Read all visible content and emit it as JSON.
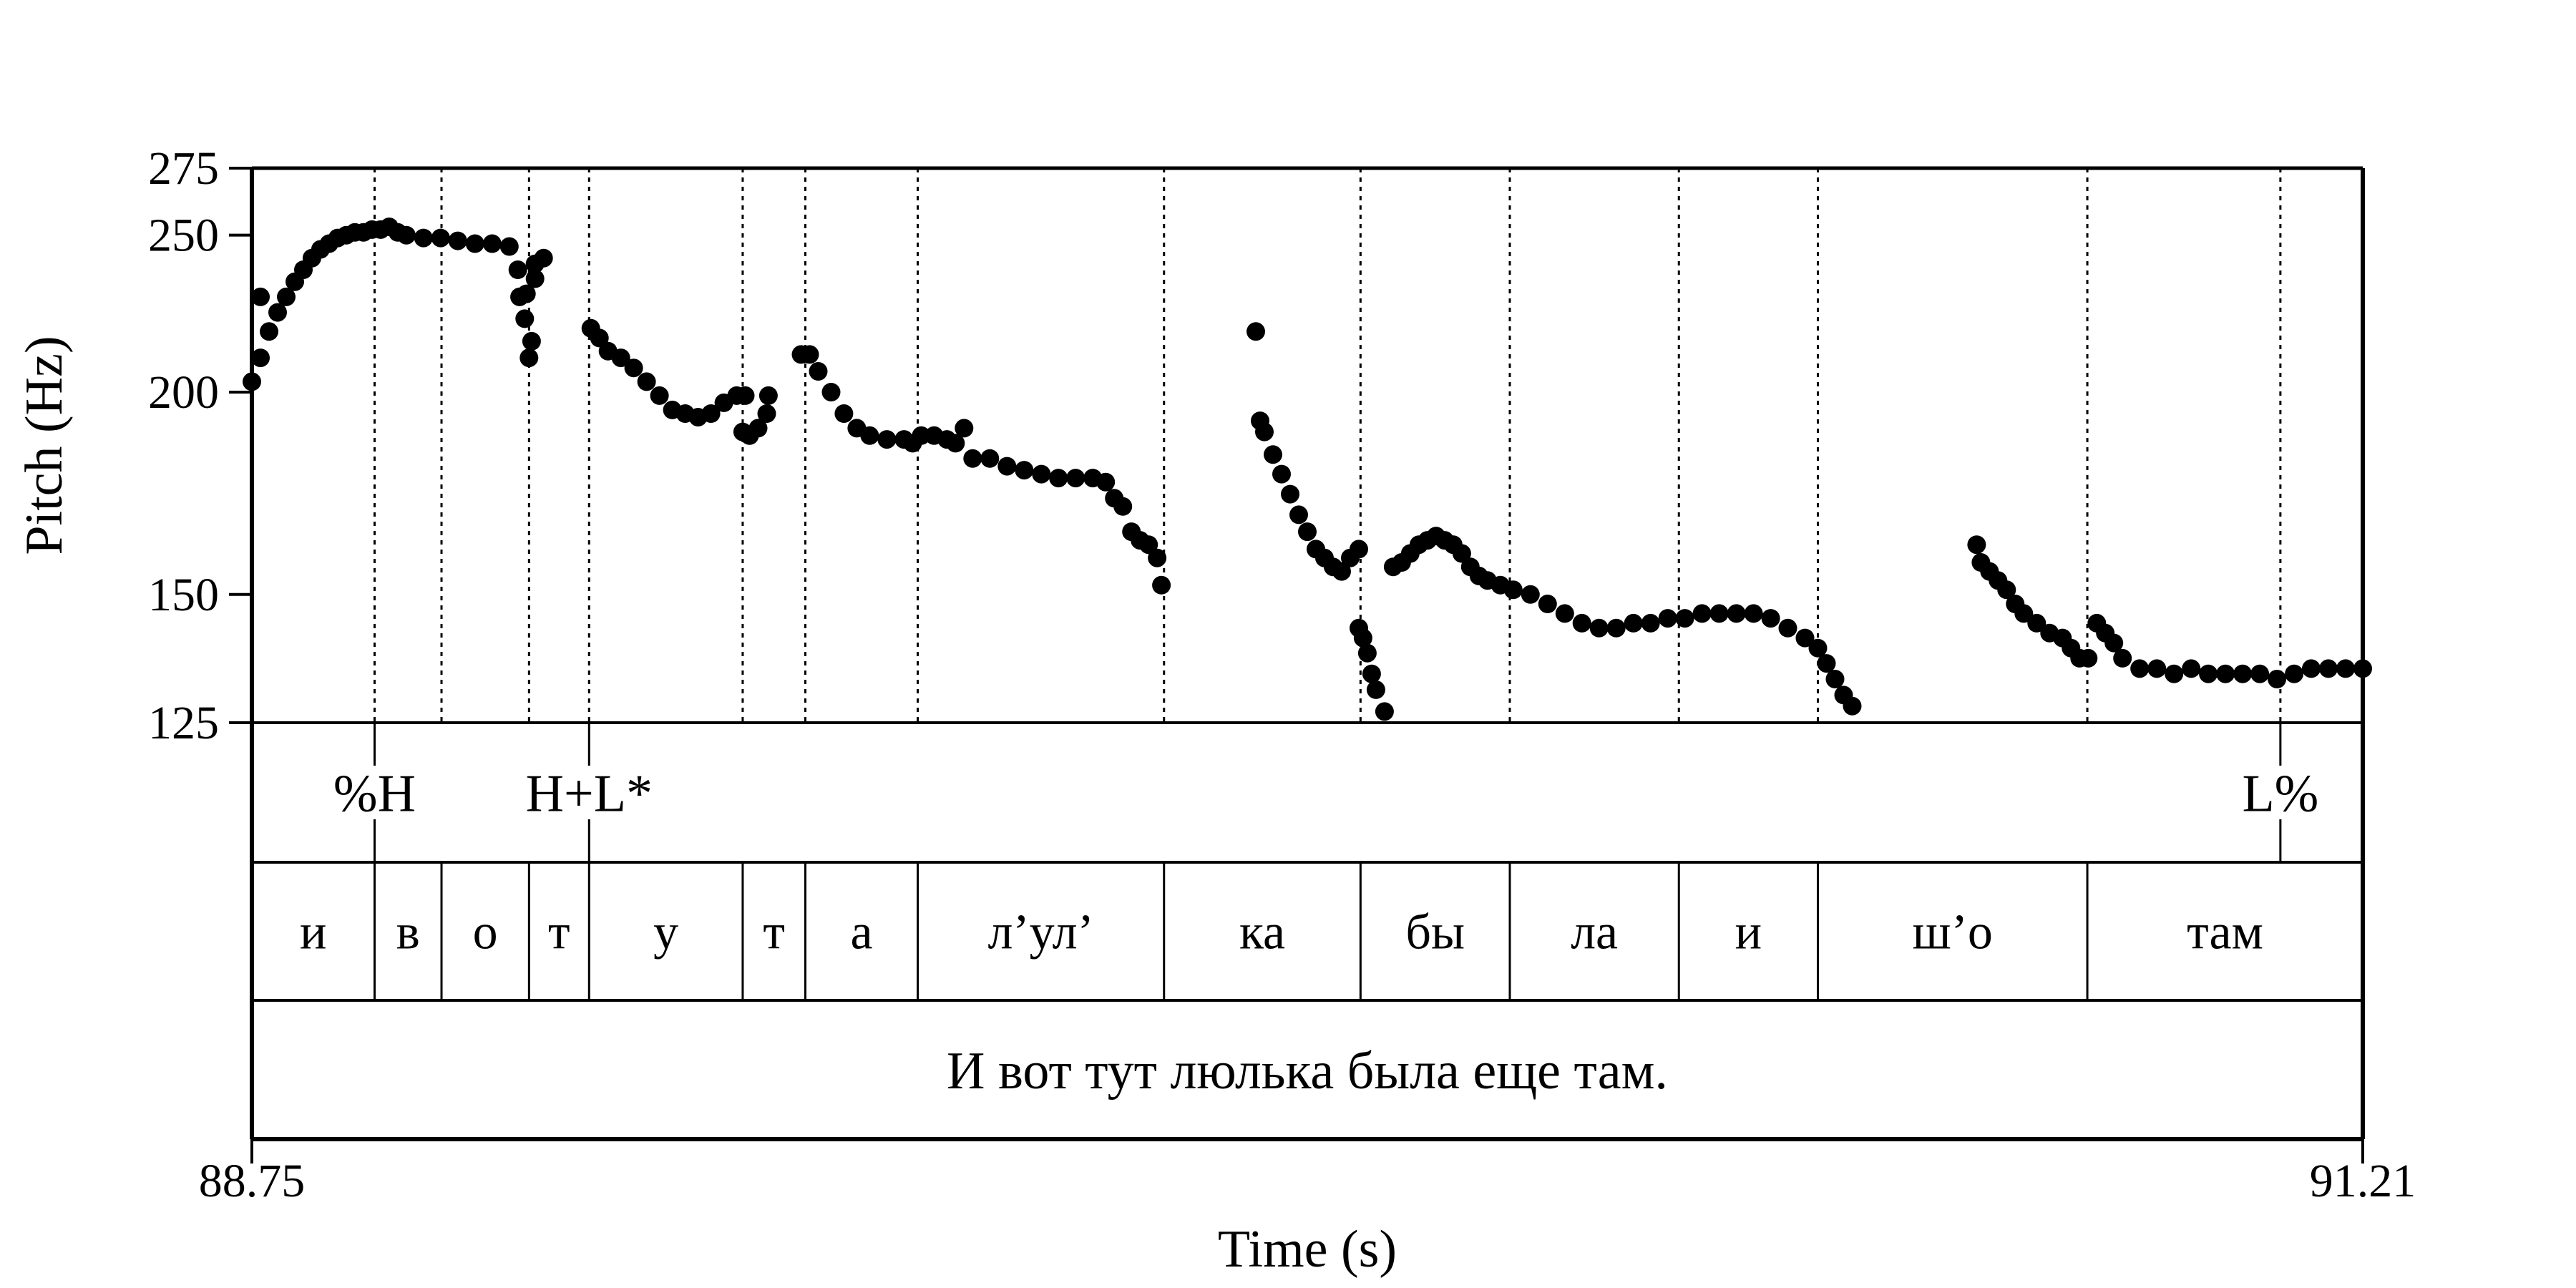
{
  "chart_data": {
    "type": "scatter",
    "xlabel": "Time (s)",
    "ylabel": "Pitch (Hz)",
    "xlim": [
      88.75,
      91.21
    ],
    "ylim": [
      125,
      275
    ],
    "y_scale": "log",
    "y_ticks": [
      125,
      150,
      200,
      250,
      275
    ],
    "x_tick_labels": [
      "88.75",
      "91.21"
    ],
    "grid": "dotted vertical lines at segment and tone boundaries",
    "boundaries": [
      88.893,
      88.971,
      89.073,
      89.143,
      89.322,
      89.395,
      89.526,
      89.813,
      90.042,
      90.216,
      90.413,
      90.575,
      90.889,
      91.114
    ],
    "tones": [
      {
        "label": "%H",
        "t": 88.893
      },
      {
        "label": "H+L*",
        "t": 89.143
      },
      {
        "label": "L%",
        "t": 91.114
      }
    ],
    "segments": [
      {
        "label": "и",
        "start": 88.75,
        "end": 88.893
      },
      {
        "label": "в",
        "start": 88.893,
        "end": 88.971
      },
      {
        "label": "о",
        "start": 88.971,
        "end": 89.073
      },
      {
        "label": "т",
        "start": 89.073,
        "end": 89.143
      },
      {
        "label": "у",
        "start": 89.143,
        "end": 89.322
      },
      {
        "label": "т",
        "start": 89.322,
        "end": 89.395
      },
      {
        "label": "а",
        "start": 89.395,
        "end": 89.526
      },
      {
        "label": "л’ул’",
        "start": 89.526,
        "end": 89.813
      },
      {
        "label": "ка",
        "start": 89.813,
        "end": 90.042
      },
      {
        "label": "бы",
        "start": 90.042,
        "end": 90.216
      },
      {
        "label": "ла",
        "start": 90.216,
        "end": 90.413
      },
      {
        "label": "и",
        "start": 90.413,
        "end": 90.575
      },
      {
        "label": "ш’о",
        "start": 90.575,
        "end": 90.889
      },
      {
        "label": "там",
        "start": 90.889,
        "end": 91.21
      }
    ],
    "utterance": "И вот тут люлька была еще там.",
    "series": [
      {
        "points": [
          [
            88.75,
            203
          ],
          [
            88.76,
            210
          ],
          [
            88.77,
            218
          ],
          [
            88.78,
            224
          ],
          [
            88.79,
            229
          ],
          [
            88.8,
            234
          ],
          [
            88.81,
            238
          ],
          [
            88.82,
            242
          ],
          [
            88.83,
            245
          ],
          [
            88.84,
            247
          ],
          [
            88.85,
            249
          ],
          [
            88.86,
            250
          ],
          [
            88.87,
            251
          ],
          [
            88.88,
            251
          ],
          [
            88.89,
            252
          ],
          [
            88.9,
            252
          ],
          [
            88.91,
            253
          ],
          [
            88.92,
            251
          ],
          [
            88.93,
            250
          ],
          [
            88.95,
            249
          ],
          [
            88.97,
            249
          ],
          [
            88.99,
            248
          ],
          [
            89.01,
            247
          ],
          [
            89.03,
            247
          ],
          [
            89.05,
            246
          ],
          [
            89.06,
            238
          ],
          [
            89.07,
            230
          ],
          [
            89.08,
            240
          ],
          [
            89.09,
            242
          ]
        ]
      },
      {
        "points": [
          [
            88.76,
            229
          ],
          [
            89.062,
            229
          ],
          [
            89.068,
            222
          ],
          [
            89.073,
            210
          ],
          [
            89.076,
            215
          ],
          [
            89.08,
            235
          ]
        ]
      },
      {
        "points": [
          [
            89.145,
            219
          ],
          [
            89.155,
            216
          ],
          [
            89.165,
            212
          ],
          [
            89.18,
            210
          ],
          [
            89.195,
            207
          ],
          [
            89.21,
            203
          ],
          [
            89.225,
            199
          ],
          [
            89.24,
            195
          ],
          [
            89.255,
            194
          ],
          [
            89.27,
            193
          ],
          [
            89.285,
            194
          ],
          [
            89.3,
            197
          ],
          [
            89.315,
            199
          ],
          [
            89.325,
            199
          ]
        ]
      },
      {
        "points": [
          [
            89.322,
            189
          ],
          [
            89.33,
            188
          ],
          [
            89.34,
            190
          ],
          [
            89.35,
            194
          ],
          [
            89.352,
            199
          ]
        ]
      },
      {
        "points": [
          [
            89.39,
            211
          ],
          [
            89.4,
            211
          ],
          [
            89.41,
            206
          ],
          [
            89.425,
            200
          ],
          [
            89.44,
            194
          ],
          [
            89.455,
            190
          ],
          [
            89.47,
            188
          ],
          [
            89.49,
            187
          ],
          [
            89.51,
            187
          ],
          [
            89.52,
            186
          ],
          [
            89.53,
            188
          ],
          [
            89.545,
            188
          ],
          [
            89.56,
            187
          ],
          [
            89.57,
            186
          ],
          [
            89.58,
            190
          ],
          [
            89.59,
            182
          ],
          [
            89.61,
            182
          ],
          [
            89.63,
            180
          ],
          [
            89.65,
            179
          ],
          [
            89.67,
            178
          ],
          [
            89.69,
            177
          ],
          [
            89.71,
            177
          ],
          [
            89.73,
            177
          ],
          [
            89.745,
            176
          ],
          [
            89.755,
            172
          ],
          [
            89.765,
            170
          ],
          [
            89.775,
            164
          ],
          [
            89.785,
            162
          ],
          [
            89.795,
            161
          ],
          [
            89.805,
            158
          ],
          [
            89.81,
            152
          ]
        ]
      },
      {
        "points": [
          [
            89.92,
            218
          ],
          [
            89.925,
            192
          ],
          [
            89.93,
            189
          ],
          [
            89.94,
            183
          ],
          [
            89.95,
            178
          ],
          [
            89.96,
            173
          ],
          [
            89.97,
            168
          ],
          [
            89.98,
            164
          ],
          [
            89.99,
            160
          ],
          [
            90.0,
            158
          ],
          [
            90.01,
            156
          ],
          [
            90.02,
            155
          ],
          [
            90.03,
            158
          ],
          [
            90.04,
            160
          ]
        ]
      },
      {
        "points": [
          [
            90.04,
            143
          ],
          [
            90.045,
            141
          ],
          [
            90.05,
            138
          ],
          [
            90.055,
            134
          ],
          [
            90.06,
            131
          ],
          [
            90.07,
            127
          ]
        ]
      },
      {
        "points": [
          [
            90.08,
            156
          ],
          [
            90.09,
            157
          ],
          [
            90.1,
            159
          ],
          [
            90.11,
            161
          ],
          [
            90.12,
            162
          ],
          [
            90.13,
            163
          ],
          [
            90.14,
            162
          ],
          [
            90.15,
            161
          ],
          [
            90.16,
            159
          ],
          [
            90.17,
            156
          ],
          [
            90.18,
            154
          ],
          [
            90.19,
            153
          ],
          [
            90.205,
            152
          ],
          [
            90.22,
            151
          ],
          [
            90.24,
            150
          ],
          [
            90.26,
            148
          ],
          [
            90.28,
            146
          ],
          [
            90.3,
            144
          ],
          [
            90.32,
            143
          ],
          [
            90.34,
            143
          ],
          [
            90.36,
            144
          ],
          [
            90.38,
            144
          ],
          [
            90.4,
            145
          ],
          [
            90.42,
            145
          ],
          [
            90.44,
            146
          ],
          [
            90.46,
            146
          ],
          [
            90.48,
            146
          ],
          [
            90.5,
            146
          ],
          [
            90.52,
            145
          ],
          [
            90.54,
            143
          ],
          [
            90.56,
            141
          ],
          [
            90.575,
            139
          ],
          [
            90.585,
            136
          ],
          [
            90.595,
            133
          ],
          [
            90.605,
            130
          ],
          [
            90.615,
            128
          ]
        ]
      },
      {
        "points": [
          [
            90.76,
            161
          ],
          [
            90.765,
            157
          ],
          [
            90.775,
            155
          ],
          [
            90.785,
            153
          ],
          [
            90.795,
            151
          ],
          [
            90.805,
            148
          ],
          [
            90.815,
            146
          ],
          [
            90.83,
            144
          ],
          [
            90.845,
            142
          ],
          [
            90.86,
            141
          ],
          [
            90.87,
            139
          ],
          [
            90.88,
            137
          ],
          [
            90.89,
            137
          ]
        ]
      },
      {
        "points": [
          [
            90.9,
            144
          ],
          [
            90.91,
            142
          ],
          [
            90.92,
            140
          ],
          [
            90.93,
            137
          ],
          [
            90.95,
            135
          ],
          [
            90.97,
            135
          ],
          [
            90.99,
            134
          ],
          [
            91.01,
            135
          ],
          [
            91.03,
            134
          ],
          [
            91.05,
            134
          ],
          [
            91.07,
            134
          ],
          [
            91.09,
            134
          ],
          [
            91.11,
            133
          ],
          [
            91.13,
            134
          ],
          [
            91.15,
            135
          ],
          [
            91.17,
            135
          ],
          [
            91.19,
            135
          ],
          [
            91.21,
            135
          ]
        ]
      }
    ]
  }
}
